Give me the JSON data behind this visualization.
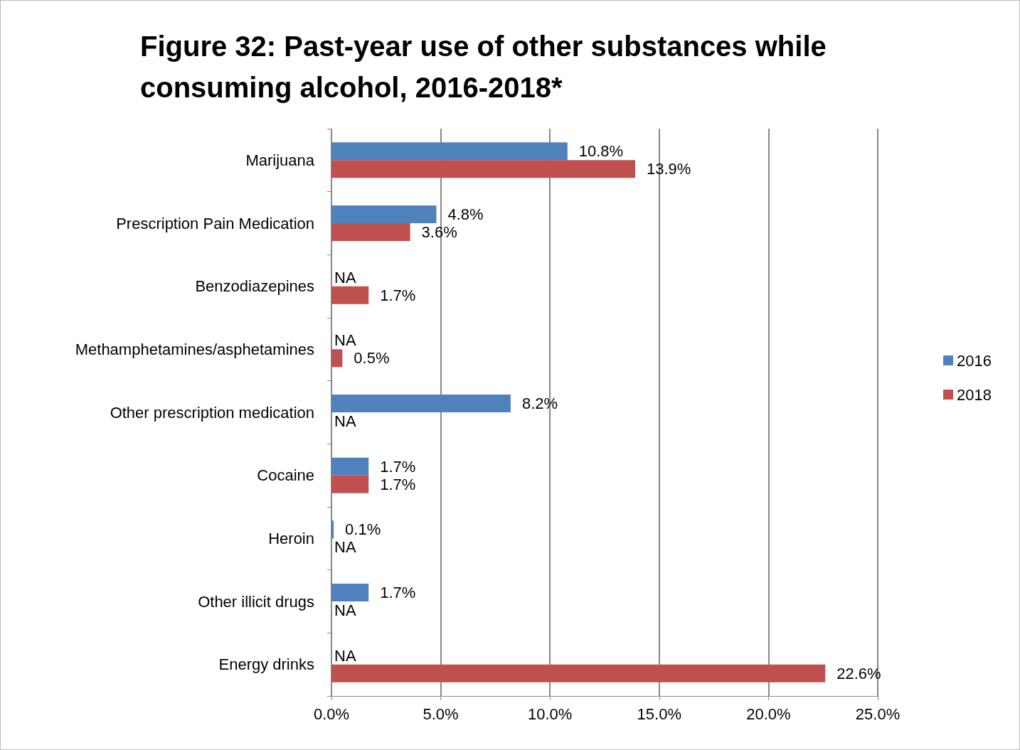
{
  "chart_data": {
    "type": "bar",
    "orientation": "horizontal",
    "title": "Figure 32: Past-year use of other substances while consuming alcohol, 2016-2018*",
    "categories": [
      "Marijuana",
      "Prescription Pain Medication",
      "Benzodiazepines",
      "Methamphetamines/asphetamines",
      "Other prescription medication",
      "Cocaine",
      "Heroin",
      "Other illicit drugs",
      "Energy drinks"
    ],
    "series": [
      {
        "name": "2016",
        "color": "#4f81bd",
        "values": [
          10.8,
          4.8,
          null,
          null,
          8.2,
          1.7,
          0.1,
          1.7,
          null
        ],
        "value_labels": [
          "10.8%",
          "4.8%",
          "NA",
          "NA",
          "8.2%",
          "1.7%",
          "0.1%",
          "1.7%",
          "NA"
        ]
      },
      {
        "name": "2018",
        "color": "#c0504d",
        "values": [
          13.9,
          3.6,
          1.7,
          0.5,
          null,
          1.7,
          null,
          null,
          22.6
        ],
        "value_labels": [
          "13.9%",
          "3.6%",
          "1.7%",
          "0.5%",
          "NA",
          "1.7%",
          "NA",
          "NA",
          "22.6%"
        ]
      }
    ],
    "xlim": [
      0,
      25
    ],
    "xticks": [
      {
        "value": 0,
        "label": "0.0%"
      },
      {
        "value": 5,
        "label": "5.0%"
      },
      {
        "value": 10,
        "label": "10.0%"
      },
      {
        "value": 15,
        "label": "15.0%"
      },
      {
        "value": 20,
        "label": "20.0%"
      },
      {
        "value": 25,
        "label": "25.0%"
      }
    ],
    "grid": "x",
    "legend": "right"
  }
}
